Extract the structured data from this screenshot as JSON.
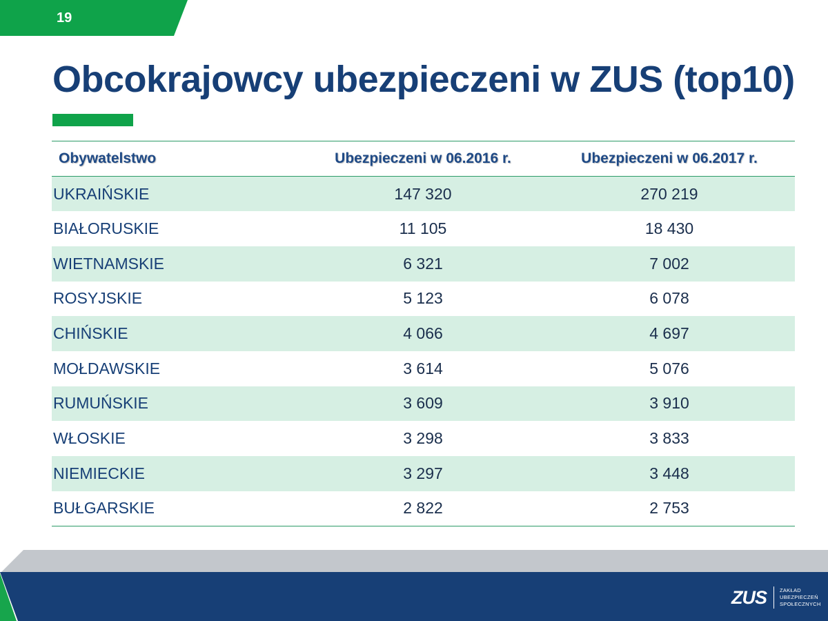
{
  "page": {
    "number": "19",
    "title": "Obcokrajowcy ubezpieczeni w ZUS (top10)"
  },
  "table": {
    "headers": [
      "Obywatelstwo",
      "Ubezpieczeni w 06.2016 r.",
      "Ubezpieczeni w 06.2017 r."
    ],
    "rows": [
      [
        "UKRAIŃSKIE",
        "147 320",
        "270 219"
      ],
      [
        "BIAŁORUSKIE",
        "11 105",
        "18 430"
      ],
      [
        "WIETNAMSKIE",
        "6 321",
        "7 002"
      ],
      [
        "ROSYJSKIE",
        "5 123",
        "6 078"
      ],
      [
        "CHIŃSKIE",
        "4 066",
        "4 697"
      ],
      [
        "MOŁDAWSKIE",
        "3 614",
        "5 076"
      ],
      [
        "RUMUŃSKIE",
        "3 609",
        "3 910"
      ],
      [
        "WŁOSKIE",
        "3 298",
        "3 833"
      ],
      [
        "NIEMIECKIE",
        "3 297",
        "3 448"
      ],
      [
        "BUŁGARSKIE",
        "2 822",
        "2 753"
      ]
    ]
  },
  "footer": {
    "logo": {
      "mark": "ZUS",
      "lines": [
        "ZAKŁAD",
        "UBEZPIECZEŃ",
        "SPOŁECZNYCH"
      ]
    }
  },
  "colors": {
    "brand_green": "#0fa34a",
    "brand_navy": "#173f76",
    "row_shade": "#d6efe3"
  }
}
